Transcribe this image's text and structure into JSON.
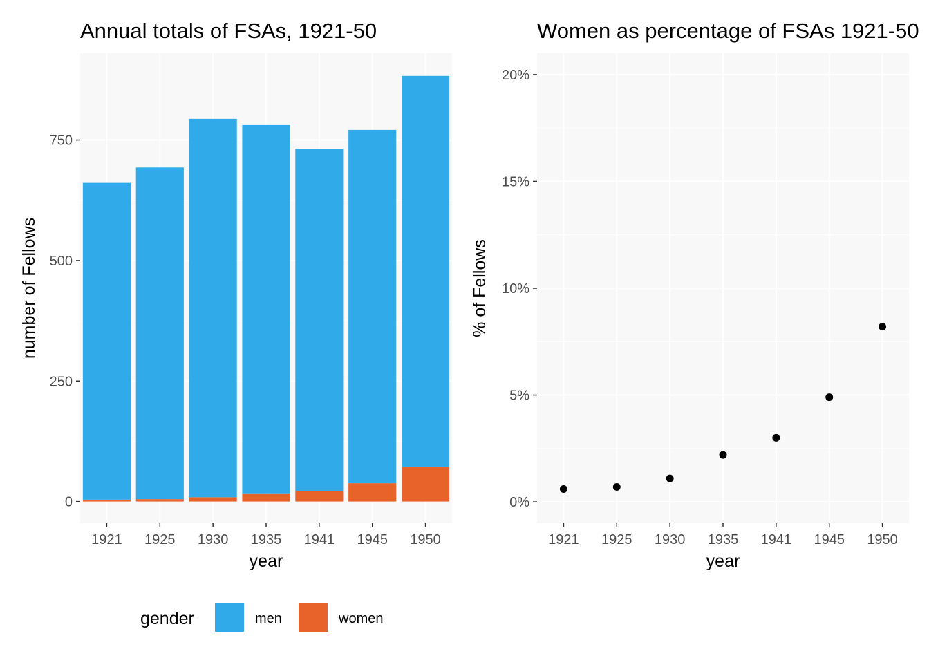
{
  "chart_data": [
    {
      "type": "bar",
      "stacked": true,
      "title": "Annual totals of FSAs, 1921-50",
      "xlabel": "year",
      "ylabel": "number of Fellows",
      "categories": [
        "1921",
        "1925",
        "1930",
        "1935",
        "1941",
        "1945",
        "1950"
      ],
      "series": [
        {
          "name": "women",
          "color": "#E8632A",
          "values": [
            4,
            5,
            9,
            17,
            22,
            38,
            72
          ]
        },
        {
          "name": "men",
          "color": "#30AAE8",
          "values": [
            657,
            688,
            785,
            764,
            710,
            733,
            811
          ]
        }
      ],
      "ylim": [
        -45,
        930
      ],
      "yticks": [
        0,
        250,
        500,
        750
      ],
      "ytick_labels": [
        "0",
        "250",
        "500",
        "750"
      ],
      "grid": true,
      "legend": {
        "title": "gender",
        "position": "bottom",
        "entries": [
          "men",
          "women"
        ]
      }
    },
    {
      "type": "scatter",
      "title": "Women as percentage of FSAs 1921-50",
      "xlabel": "year",
      "ylabel": "% of Fellows",
      "categories": [
        "1921",
        "1925",
        "1930",
        "1935",
        "1941",
        "1945",
        "1950"
      ],
      "series": [
        {
          "color": "#000000",
          "values": [
            0.6,
            0.7,
            1.1,
            2.2,
            3.0,
            4.9,
            8.2
          ]
        }
      ],
      "ylim": [
        -1.0,
        21.0
      ],
      "yticks": [
        0,
        5,
        10,
        15,
        20
      ],
      "ytick_labels": [
        "0%",
        "5%",
        "10%",
        "15%",
        "20%"
      ],
      "grid": true
    }
  ],
  "panel_background": "#F8F8F8",
  "grid_color": "#FFFFFF"
}
